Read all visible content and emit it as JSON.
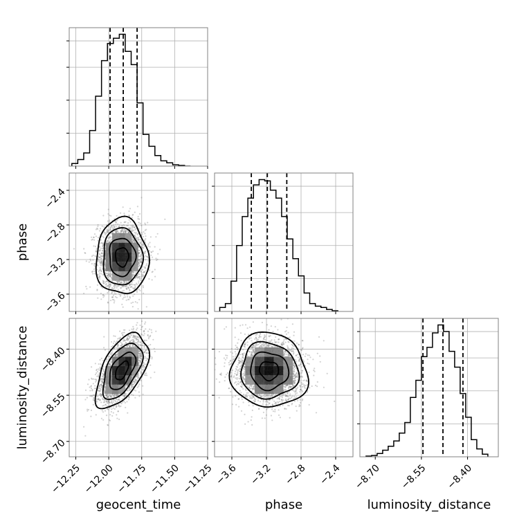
{
  "figure": {
    "type": "corner-plot",
    "parameters": [
      "geocent_time",
      "phase",
      "luminosity_distance"
    ]
  },
  "chart_data": [
    {
      "type": "histogram",
      "panel": "geocent_time",
      "xlim": [
        -12.3,
        -11.25
      ],
      "bin_edges": [
        -12.28,
        -12.235,
        -12.19,
        -12.145,
        -12.1,
        -12.055,
        -12.01,
        -11.965,
        -11.92,
        -11.875,
        -11.83,
        -11.785,
        -11.74,
        -11.695,
        -11.65,
        -11.605,
        -11.56,
        -11.515,
        -11.47,
        -11.425,
        -11.38
      ],
      "counts": [
        0.02,
        0.05,
        0.1,
        0.27,
        0.53,
        0.8,
        0.93,
        0.97,
        1.0,
        0.87,
        0.77,
        0.48,
        0.24,
        0.15,
        0.08,
        0.04,
        0.025,
        0.01,
        0.005,
        0.0
      ],
      "quantiles": [
        -11.99,
        -11.89,
        -11.785
      ],
      "grid": true
    },
    {
      "type": "histogram",
      "panel": "phase",
      "xlim": [
        -3.8,
        -2.2
      ],
      "bin_edges": [
        -3.74,
        -3.675,
        -3.61,
        -3.545,
        -3.48,
        -3.415,
        -3.35,
        -3.285,
        -3.22,
        -3.155,
        -3.09,
        -3.025,
        -2.96,
        -2.895,
        -2.83,
        -2.765,
        -2.7,
        -2.635,
        -2.57,
        -2.505,
        -2.44,
        -2.375
      ],
      "counts": [
        0.03,
        0.06,
        0.23,
        0.5,
        0.72,
        0.86,
        0.96,
        1.0,
        0.99,
        0.92,
        0.86,
        0.72,
        0.55,
        0.4,
        0.27,
        0.14,
        0.06,
        0.04,
        0.03,
        0.015,
        0.005
      ],
      "quantiles": [
        -3.375,
        -3.19,
        -2.965
      ],
      "grid": true
    },
    {
      "type": "histogram",
      "panel": "luminosity_distance",
      "xlim": [
        -8.75,
        -8.3
      ],
      "bin_edges": [
        -8.73,
        -8.712,
        -8.694,
        -8.676,
        -8.658,
        -8.64,
        -8.622,
        -8.604,
        -8.586,
        -8.568,
        -8.55,
        -8.532,
        -8.514,
        -8.496,
        -8.478,
        -8.46,
        -8.442,
        -8.424,
        -8.406,
        -8.388,
        -8.37,
        -8.352,
        -8.334
      ],
      "counts": [
        0.005,
        0.01,
        0.025,
        0.05,
        0.08,
        0.12,
        0.18,
        0.26,
        0.45,
        0.58,
        0.76,
        0.83,
        0.94,
        1.0,
        0.95,
        0.8,
        0.68,
        0.48,
        0.3,
        0.13,
        0.06,
        0.02
      ],
      "quantiles": [
        -8.545,
        -8.48,
        -8.415
      ],
      "grid": true
    },
    {
      "type": "scatter-contour",
      "panel": "geocent_time vs phase",
      "x_param": "geocent_time",
      "y_param": "phase",
      "xlim": [
        -12.3,
        -11.25
      ],
      "ylim": [
        -3.8,
        -2.2
      ],
      "center": [
        -11.9,
        -3.17
      ],
      "sigma": [
        0.09,
        0.2
      ],
      "rho": 0.0,
      "contour_levels_sigma": [
        0.5,
        1.0,
        1.5,
        2.0
      ]
    },
    {
      "type": "scatter-contour",
      "panel": "geocent_time vs luminosity_distance",
      "x_param": "geocent_time",
      "y_param": "luminosity_distance",
      "xlim": [
        -12.3,
        -11.25
      ],
      "ylim": [
        -8.75,
        -8.3
      ],
      "center": [
        -11.9,
        -8.47
      ],
      "sigma": [
        0.09,
        0.055
      ],
      "rho": 0.55,
      "contour_levels_sigma": [
        0.5,
        1.0,
        1.5,
        2.0
      ]
    },
    {
      "type": "scatter-contour",
      "panel": "phase vs luminosity_distance",
      "x_param": "phase",
      "y_param": "luminosity_distance",
      "xlim": [
        -3.8,
        -2.2
      ],
      "ylim": [
        -8.75,
        -8.3
      ],
      "center": [
        -3.17,
        -8.47
      ],
      "sigma": [
        0.2,
        0.055
      ],
      "rho": -0.05,
      "contour_levels_sigma": [
        0.5,
        1.0,
        1.5,
        2.0
      ]
    }
  ],
  "axes": {
    "geocent_time": {
      "label": "geocent_time",
      "ticks": [
        -12.25,
        -12.0,
        -11.75,
        -11.5,
        -11.25
      ],
      "tick_labels": [
        "−12.25",
        "−12.00",
        "−11.75",
        "−11.50",
        "−11.25"
      ]
    },
    "phase": {
      "label": "phase",
      "ticks": [
        -3.6,
        -3.2,
        -2.8,
        -2.4
      ],
      "tick_labels": [
        "−3.6",
        "−3.2",
        "−2.8",
        "−2.4"
      ]
    },
    "luminosity_distance": {
      "label": "luminosity_distance",
      "ticks": [
        -8.7,
        -8.55,
        -8.4
      ],
      "tick_labels": [
        "−8.70",
        "−8.55",
        "−8.40"
      ]
    }
  },
  "colors": {
    "line": "#000000",
    "grid": "#b0b0b0",
    "point": "#7f7f7f",
    "axes_edge": "#808080"
  }
}
